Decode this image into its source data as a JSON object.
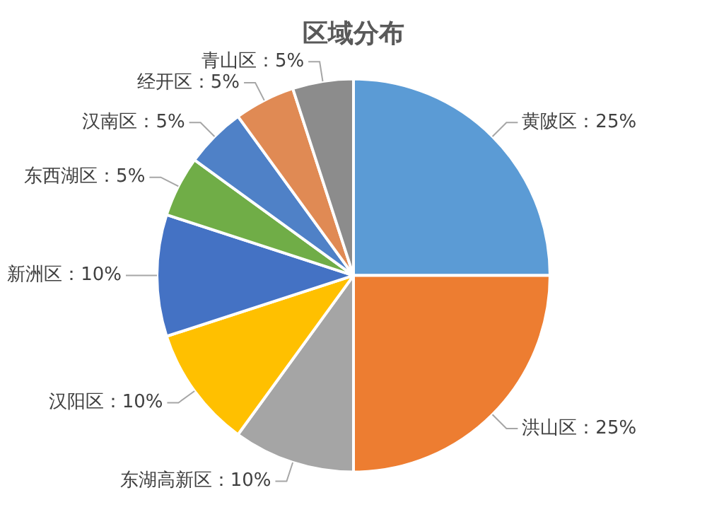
{
  "chart_data": {
    "type": "pie",
    "title": "区域分布",
    "categories": [
      "黄陂区",
      "洪山区",
      "东湖高新区",
      "汉阳区",
      "新洲区",
      "东西湖区",
      "汉南区",
      "经开区",
      "青山区"
    ],
    "values": [
      25,
      25,
      10,
      10,
      10,
      5,
      5,
      5,
      5
    ],
    "value_labels": [
      "25%",
      "25%",
      "10%",
      "10%",
      "10%",
      "5%",
      "5%",
      "5%",
      "5%"
    ],
    "colors": [
      "#5b9bd5",
      "#ed7d31",
      "#a5a5a5",
      "#ffc000",
      "#4472c4",
      "#70ad47",
      "#4f81c7",
      "#e08a54",
      "#8c8c8c"
    ],
    "legend": false
  }
}
